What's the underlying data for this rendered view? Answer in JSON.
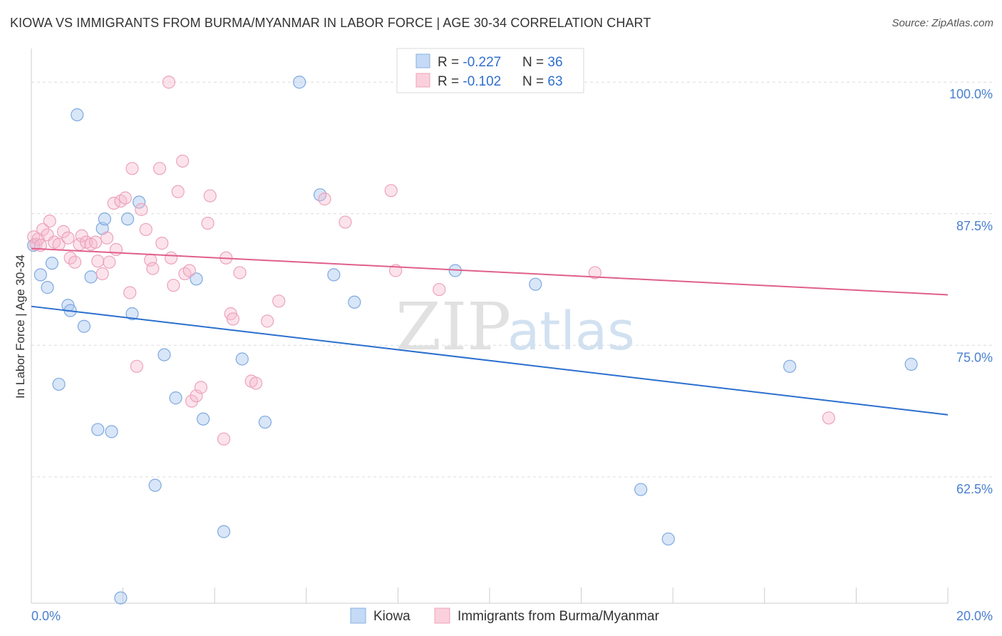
{
  "chart_data": {
    "type": "scatter",
    "title": "KIOWA VS IMMIGRANTS FROM BURMA/MYANMAR IN LABOR FORCE | AGE 30-34 CORRELATION CHART",
    "source": "Source: ZipAtlas.com",
    "xlabel": "",
    "ylabel": "In Labor Force | Age 30-34",
    "xlim": [
      0,
      20
    ],
    "ylim": [
      50.5,
      103.2
    ],
    "x_tick_labels": [
      {
        "value": 0,
        "label": "0.0%"
      },
      {
        "value": 20,
        "label": "20.0%"
      }
    ],
    "y_ticks": [
      {
        "value": 100,
        "label": "100.0%"
      },
      {
        "value": 87.5,
        "label": "87.5%"
      },
      {
        "value": 75,
        "label": "75.0%"
      },
      {
        "value": 62.5,
        "label": "62.5%"
      }
    ],
    "watermark": {
      "zip": "ZIP",
      "atlas": "atlas"
    },
    "legend": {
      "placement": "top-center",
      "rows": [
        {
          "r_label": "R = ",
          "r_value": "-0.227",
          "n_label": "N = ",
          "n_value": "36"
        },
        {
          "r_label": "R = ",
          "r_value": "-0.102",
          "n_label": "N = ",
          "n_value": "63"
        }
      ]
    },
    "series": [
      {
        "name": "Kiowa",
        "color": "#a8c8f0",
        "line_color": "#2b6fce",
        "trend": {
          "x0": 0,
          "y0": 78.7,
          "x1": 20,
          "y1": 68.4
        },
        "points": [
          [
            0.05,
            84.5
          ],
          [
            0.2,
            81.7
          ],
          [
            0.35,
            80.5
          ],
          [
            0.45,
            82.8
          ],
          [
            0.6,
            71.3
          ],
          [
            0.8,
            78.8
          ],
          [
            0.85,
            78.3
          ],
          [
            1.0,
            96.9
          ],
          [
            1.15,
            76.8
          ],
          [
            1.3,
            81.5
          ],
          [
            1.45,
            67.0
          ],
          [
            1.55,
            86.1
          ],
          [
            1.6,
            87.0
          ],
          [
            1.75,
            66.8
          ],
          [
            1.95,
            51.0
          ],
          [
            2.1,
            87.0
          ],
          [
            2.2,
            78.0
          ],
          [
            2.35,
            88.6
          ],
          [
            2.7,
            61.7
          ],
          [
            2.9,
            74.1
          ],
          [
            3.15,
            70.0
          ],
          [
            3.6,
            81.3
          ],
          [
            3.75,
            68.0
          ],
          [
            4.2,
            57.3
          ],
          [
            4.6,
            73.7
          ],
          [
            5.1,
            67.7
          ],
          [
            5.85,
            100.0
          ],
          [
            6.3,
            89.3
          ],
          [
            6.6,
            81.7
          ],
          [
            7.05,
            79.1
          ],
          [
            9.25,
            82.1
          ],
          [
            11.0,
            80.8
          ],
          [
            13.3,
            61.3
          ],
          [
            13.9,
            56.6
          ],
          [
            16.55,
            73.0
          ],
          [
            19.2,
            73.2
          ]
        ]
      },
      {
        "name": "Immigrants from Burma/Myanmar",
        "color": "#f8b8cc",
        "line_color": "#e0608a",
        "trend": {
          "x0": 0,
          "y0": 84.2,
          "x1": 20,
          "y1": 79.8
        },
        "points": [
          [
            0.05,
            85.3
          ],
          [
            0.1,
            84.6
          ],
          [
            0.15,
            85.1
          ],
          [
            0.2,
            84.5
          ],
          [
            0.25,
            86.0
          ],
          [
            0.35,
            85.5
          ],
          [
            0.4,
            86.8
          ],
          [
            0.5,
            84.8
          ],
          [
            0.6,
            84.6
          ],
          [
            0.7,
            85.8
          ],
          [
            0.8,
            85.2
          ],
          [
            0.85,
            83.3
          ],
          [
            0.95,
            82.9
          ],
          [
            1.05,
            84.6
          ],
          [
            1.1,
            85.4
          ],
          [
            1.2,
            84.8
          ],
          [
            1.3,
            84.6
          ],
          [
            1.4,
            84.8
          ],
          [
            1.45,
            83.0
          ],
          [
            1.55,
            81.8
          ],
          [
            1.65,
            85.2
          ],
          [
            1.7,
            82.9
          ],
          [
            1.8,
            88.5
          ],
          [
            1.85,
            84.1
          ],
          [
            1.95,
            88.7
          ],
          [
            2.05,
            89.0
          ],
          [
            2.15,
            80.0
          ],
          [
            2.2,
            91.8
          ],
          [
            2.3,
            73.0
          ],
          [
            2.4,
            87.9
          ],
          [
            2.5,
            86.0
          ],
          [
            2.6,
            83.1
          ],
          [
            2.65,
            82.3
          ],
          [
            2.8,
            91.8
          ],
          [
            2.85,
            84.7
          ],
          [
            3.0,
            100.0
          ],
          [
            3.05,
            83.3
          ],
          [
            3.1,
            80.7
          ],
          [
            3.2,
            89.6
          ],
          [
            3.3,
            92.5
          ],
          [
            3.35,
            81.8
          ],
          [
            3.45,
            82.1
          ],
          [
            3.5,
            69.7
          ],
          [
            3.6,
            70.2
          ],
          [
            3.7,
            71.0
          ],
          [
            3.85,
            86.6
          ],
          [
            3.9,
            89.2
          ],
          [
            4.2,
            66.1
          ],
          [
            4.25,
            83.3
          ],
          [
            4.35,
            78.0
          ],
          [
            4.4,
            77.5
          ],
          [
            4.55,
            81.9
          ],
          [
            4.8,
            71.6
          ],
          [
            4.9,
            71.4
          ],
          [
            5.15,
            77.3
          ],
          [
            5.4,
            79.2
          ],
          [
            6.4,
            88.9
          ],
          [
            6.85,
            86.7
          ],
          [
            7.85,
            89.7
          ],
          [
            7.95,
            82.1
          ],
          [
            8.9,
            80.3
          ],
          [
            12.3,
            81.9
          ],
          [
            17.4,
            68.1
          ]
        ]
      }
    ]
  }
}
